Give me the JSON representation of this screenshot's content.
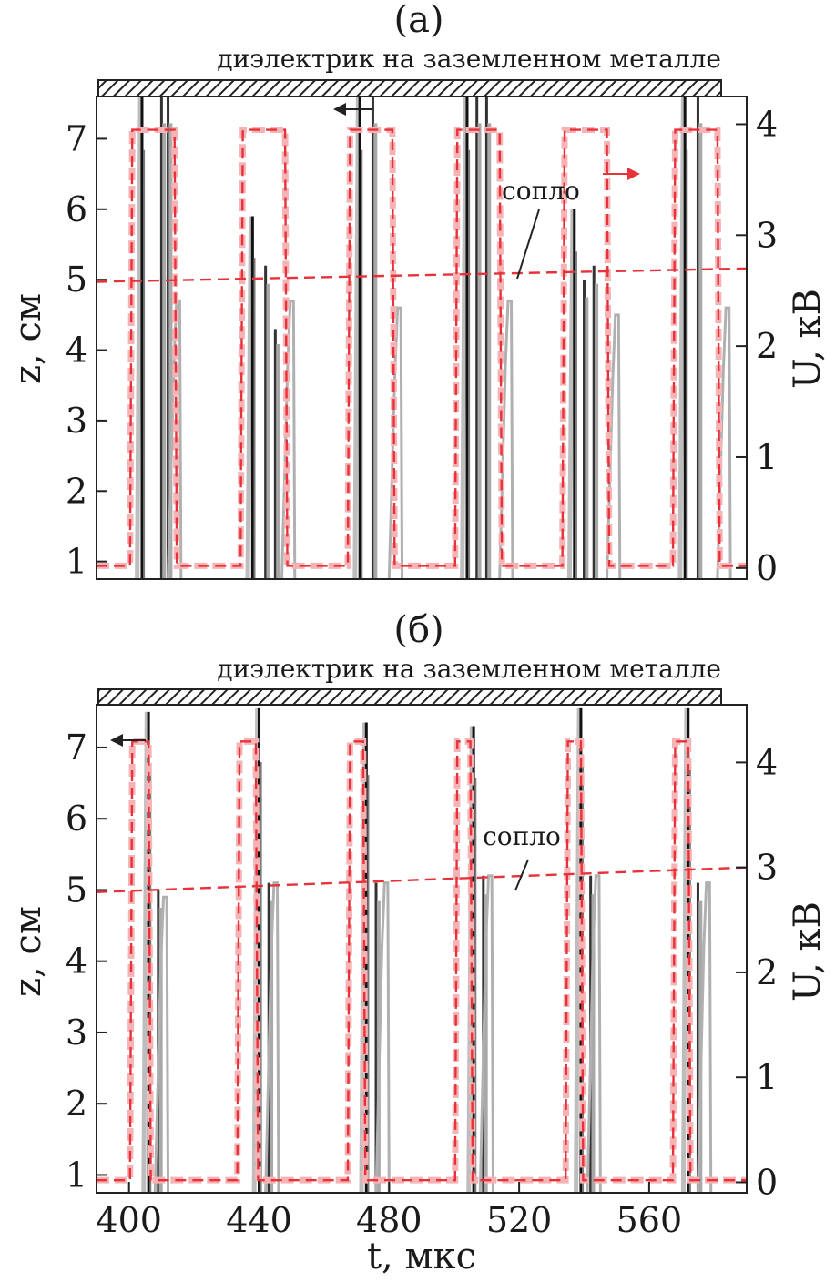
{
  "chart_data": [
    {
      "type": "line",
      "panel_label": "(а)",
      "header_label": "диэлектрик на заземленном металле",
      "nozzle_label": "сопло",
      "xlim": [
        390,
        590
      ],
      "ylim_left": [
        0.75,
        7.6
      ],
      "ylim_right": [
        -0.1,
        4.25
      ],
      "ylabel_left": "z, см",
      "ylabel_right": "U, кВ",
      "yticks_left": [
        "1",
        "2",
        "3",
        "4",
        "5",
        "6",
        "7"
      ],
      "yticks_right": [
        "0",
        "1",
        "2",
        "3",
        "4"
      ],
      "nozzle_level_left": 4.97,
      "nozzle_level_right_end": 2.7,
      "voltage_colors": {
        "main": "#e8323a",
        "halo": "#f6b3b5"
      },
      "voltage_pulses": [
        {
          "t_on": 401,
          "t_off": 414,
          "v_low": 0.02,
          "v_high": 3.95
        },
        {
          "t_on": 435,
          "t_off": 448,
          "v_low": 0.02,
          "v_high": 3.95
        },
        {
          "t_on": 468,
          "t_off": 481,
          "v_low": 0.02,
          "v_high": 3.95
        },
        {
          "t_on": 501,
          "t_off": 514,
          "v_low": 0.02,
          "v_high": 3.95
        },
        {
          "t_on": 534,
          "t_off": 547,
          "v_low": 0.02,
          "v_high": 3.95
        },
        {
          "t_on": 568,
          "t_off": 581,
          "v_low": 0.02,
          "v_high": 3.95
        }
      ],
      "discharge_pulses": [
        {
          "t": 404,
          "z_peak": 7.6,
          "secondary": [
            {
              "t": 410,
              "z": 7.6
            },
            {
              "t": 412,
              "z": 7.6
            }
          ],
          "tail_t": 415,
          "tail_z": 4.7
        },
        {
          "t": 438,
          "z_peak": 5.9,
          "secondary": [
            {
              "t": 442,
              "z": 5.2
            },
            {
              "t": 445,
              "z": 4.3
            }
          ],
          "tail_t": 450,
          "tail_z": 4.7
        },
        {
          "t": 471,
          "z_peak": 7.6,
          "secondary": [
            {
              "t": 475,
              "z": 7.6
            }
          ],
          "tail_t": 483,
          "tail_z": 4.6
        },
        {
          "t": 504,
          "z_peak": 7.6,
          "secondary": [
            {
              "t": 507,
              "z": 7.6
            },
            {
              "t": 510,
              "z": 7.6
            }
          ],
          "tail_t": 517,
          "tail_z": 4.7
        },
        {
          "t": 537,
          "z_peak": 6.0,
          "secondary": [
            {
              "t": 540,
              "z": 5.0
            },
            {
              "t": 543,
              "z": 5.2
            }
          ],
          "tail_t": 550,
          "tail_z": 4.5
        },
        {
          "t": 571,
          "z_peak": 7.6,
          "secondary": [
            {
              "t": 575,
              "z": 7.6
            }
          ],
          "tail_t": 584,
          "tail_z": 4.6
        }
      ]
    },
    {
      "type": "line",
      "panel_label": "(б)",
      "header_label": "диэлектрик на заземленном металле",
      "nozzle_label": "сопло",
      "xlim": [
        390,
        590
      ],
      "ylim_left": [
        0.75,
        7.6
      ],
      "ylim_right": [
        -0.1,
        4.55
      ],
      "ylabel_left": "z, см",
      "ylabel_right": "U, кВ",
      "xlabel": "t, мкс",
      "xticks": [
        "400",
        "440",
        "480",
        "520",
        "560"
      ],
      "yticks_left": [
        "1",
        "2",
        "3",
        "4",
        "5",
        "6",
        "7"
      ],
      "yticks_right": [
        "0",
        "1",
        "2",
        "3",
        "4"
      ],
      "nozzle_level_left": 4.97,
      "nozzle_level_right_end": 3.0,
      "voltage_colors": {
        "main": "#e8323a",
        "halo": "#f6b3b5"
      },
      "voltage_pulses": [
        {
          "t_on": 401,
          "t_off": 406,
          "v_low": 0.02,
          "v_high": 4.2
        },
        {
          "t_on": 434,
          "t_off": 439,
          "v_low": 0.02,
          "v_high": 4.2
        },
        {
          "t_on": 468,
          "t_off": 472,
          "v_low": 0.02,
          "v_high": 4.2
        },
        {
          "t_on": 501,
          "t_off": 505,
          "v_low": 0.02,
          "v_high": 4.2
        },
        {
          "t_on": 535,
          "t_off": 539,
          "v_low": 0.02,
          "v_high": 4.2
        },
        {
          "t_on": 568,
          "t_off": 572,
          "v_low": 0.02,
          "v_high": 4.2
        }
      ],
      "discharge_pulses": [
        {
          "t": 406,
          "z_peak": 7.5,
          "secondary": [
            {
              "t": 409,
              "z": 5.0
            }
          ],
          "tail_t": 411,
          "tail_z": 4.9
        },
        {
          "t": 440,
          "z_peak": 7.55,
          "secondary": [
            {
              "t": 443,
              "z": 5.1
            }
          ],
          "tail_t": 445,
          "tail_z": 5.1
        },
        {
          "t": 473,
          "z_peak": 7.35,
          "secondary": [
            {
              "t": 476,
              "z": 5.1
            }
          ],
          "tail_t": 479,
          "tail_z": 5.1
        },
        {
          "t": 506,
          "z_peak": 7.3,
          "secondary": [
            {
              "t": 509,
              "z": 5.2
            }
          ],
          "tail_t": 511,
          "tail_z": 5.2
        },
        {
          "t": 539,
          "z_peak": 7.55,
          "secondary": [
            {
              "t": 542,
              "z": 5.2
            }
          ],
          "tail_t": 544,
          "tail_z": 5.2
        },
        {
          "t": 572,
          "z_peak": 7.55,
          "secondary": [
            {
              "t": 575,
              "z": 5.1
            }
          ],
          "tail_t": 578,
          "tail_z": 5.1
        }
      ]
    }
  ]
}
